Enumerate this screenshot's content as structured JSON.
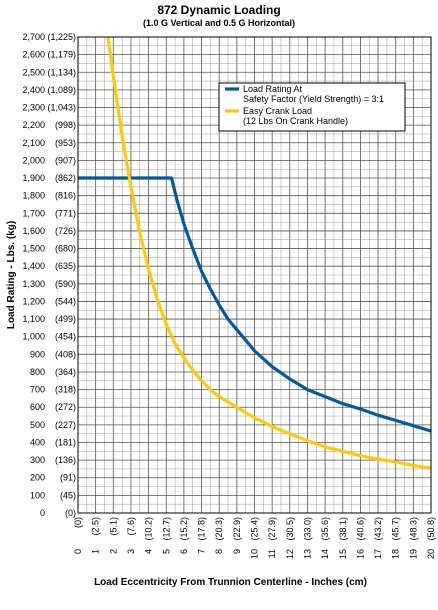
{
  "chart_data": {
    "type": "line",
    "title": "872 Dynamic Loading",
    "subtitle": "(1.0 G Vertical and 0.5 G Horizontal)",
    "xlabel": "Load Eccentricity From Trunnion Centerline - Inches (cm)",
    "ylabel": "Load Rating - Lbs. (kg)",
    "xlim": [
      0,
      20
    ],
    "ylim": [
      0,
      2700
    ],
    "grid": true,
    "legend_position": "top-right",
    "y_ticks": [
      {
        "value": 0,
        "label": "0",
        "label2": "(0)"
      },
      {
        "value": 100,
        "label": "100",
        "label2": "(45)"
      },
      {
        "value": 200,
        "label": "200",
        "label2": "(91)"
      },
      {
        "value": 300,
        "label": "300",
        "label2": "(136)"
      },
      {
        "value": 400,
        "label": "400",
        "label2": "(181)"
      },
      {
        "value": 500,
        "label": "500",
        "label2": "(227)"
      },
      {
        "value": 600,
        "label": "600",
        "label2": "(272)"
      },
      {
        "value": 700,
        "label": "700",
        "label2": "(318)"
      },
      {
        "value": 800,
        "label": "800",
        "label2": "(364)"
      },
      {
        "value": 900,
        "label": "900",
        "label2": "(408)"
      },
      {
        "value": 1000,
        "label": "1,000",
        "label2": "(454)"
      },
      {
        "value": 1100,
        "label": "1,100",
        "label2": "(499)"
      },
      {
        "value": 1200,
        "label": "1,200",
        "label2": "(544)"
      },
      {
        "value": 1300,
        "label": "1,300",
        "label2": "(590)"
      },
      {
        "value": 1400,
        "label": "1,400",
        "label2": "(635)"
      },
      {
        "value": 1500,
        "label": "1,500",
        "label2": "(680)"
      },
      {
        "value": 1600,
        "label": "1,600",
        "label2": "(726)"
      },
      {
        "value": 1700,
        "label": "1,700",
        "label2": "(771)"
      },
      {
        "value": 1800,
        "label": "1,800",
        "label2": "(816)"
      },
      {
        "value": 1900,
        "label": "1,900",
        "label2": "(862)"
      },
      {
        "value": 2000,
        "label": "2,000",
        "label2": "(907)"
      },
      {
        "value": 2100,
        "label": "2,100",
        "label2": "(953)"
      },
      {
        "value": 2200,
        "label": "2,200",
        "label2": "(998)"
      },
      {
        "value": 2300,
        "label": "2,300",
        "label2": "(1,043)"
      },
      {
        "value": 2400,
        "label": "2,400",
        "label2": "(1,089)"
      },
      {
        "value": 2500,
        "label": "2,500",
        "label2": "(1,134)"
      },
      {
        "value": 2600,
        "label": "2,600",
        "label2": "(1,179)"
      },
      {
        "value": 2700,
        "label": "2,700",
        "label2": "(1,225)"
      }
    ],
    "x_ticks": [
      {
        "value": 0,
        "label": "0",
        "label2": "(0)"
      },
      {
        "value": 1,
        "label": "1",
        "label2": "(2.5)"
      },
      {
        "value": 2,
        "label": "2",
        "label2": "(5.1)"
      },
      {
        "value": 3,
        "label": "3",
        "label2": "(7.6)"
      },
      {
        "value": 4,
        "label": "4",
        "label2": "(10.2)"
      },
      {
        "value": 5,
        "label": "5",
        "label2": "(12.7)"
      },
      {
        "value": 6,
        "label": "6",
        "label2": "(15.2)"
      },
      {
        "value": 7,
        "label": "7",
        "label2": "(17.8)"
      },
      {
        "value": 8,
        "label": "8",
        "label2": "(20.3)"
      },
      {
        "value": 9,
        "label": "9",
        "label2": "(22.9)"
      },
      {
        "value": 10,
        "label": "10",
        "label2": "(25.4)"
      },
      {
        "value": 11,
        "label": "11",
        "label2": "(27.9)"
      },
      {
        "value": 12,
        "label": "12",
        "label2": "(30.5)"
      },
      {
        "value": 13,
        "label": "13",
        "label2": "(33.0)"
      },
      {
        "value": 14,
        "label": "14",
        "label2": "(35.6)"
      },
      {
        "value": 15,
        "label": "15",
        "label2": "(38.1)"
      },
      {
        "value": 16,
        "label": "16",
        "label2": "(40.6)"
      },
      {
        "value": 17,
        "label": "17",
        "label2": "(43.2)"
      },
      {
        "value": 18,
        "label": "18",
        "label2": "(45.7)"
      },
      {
        "value": 19,
        "label": "19",
        "label2": "(48.3)"
      },
      {
        "value": 20,
        "label": "20",
        "label2": "(50.8)"
      }
    ],
    "series": [
      {
        "name": "Load Rating At Safety Factor (Yield Strength) = 3:1",
        "legend_lines": [
          "Load Rating At",
          "Safety Factor (Yield Strength) = 3:1"
        ],
        "color": "#005a9c",
        "x": [
          0,
          5.3,
          5.6,
          6,
          6.5,
          7,
          7.5,
          8,
          8.5,
          9,
          9.5,
          10,
          11,
          12,
          13,
          14,
          15,
          16,
          17,
          18,
          19,
          20
        ],
        "y": [
          1900,
          1900,
          1780,
          1640,
          1500,
          1370,
          1270,
          1180,
          1100,
          1040,
          980,
          920,
          830,
          760,
          700,
          660,
          620,
          590,
          555,
          525,
          495,
          465
        ]
      },
      {
        "name": "Easy Crank Load (12 Lbs On Crank Handle)",
        "legend_lines": [
          "Easy Crank Load",
          "(12 Lbs On Crank Handle)"
        ],
        "color": "#ffcc00",
        "x": [
          1.7,
          2,
          2.5,
          3,
          3.5,
          4,
          4.5,
          5,
          5.5,
          6,
          6.5,
          7,
          7.5,
          8,
          9,
          10,
          11,
          12,
          13,
          14,
          15,
          16,
          17,
          18,
          19,
          20
        ],
        "y": [
          2700,
          2480,
          2140,
          1850,
          1590,
          1380,
          1210,
          1070,
          960,
          880,
          810,
          750,
          700,
          660,
          600,
          540,
          490,
          450,
          410,
          375,
          350,
          325,
          305,
          290,
          270,
          255
        ]
      }
    ]
  }
}
